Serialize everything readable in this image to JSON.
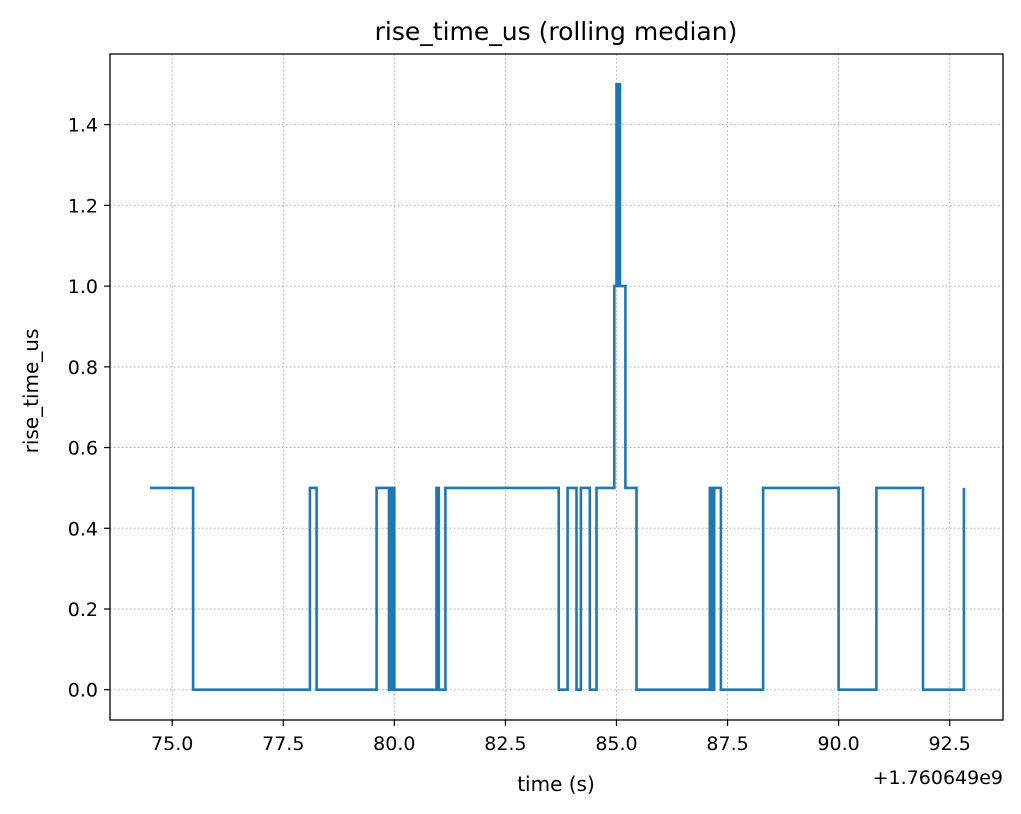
{
  "chart_data": {
    "type": "line",
    "title": "rise_time_us (rolling median)",
    "xlabel": "time (s)",
    "ylabel": "rise_time_us",
    "x_offset_text": "+1.760649e9",
    "xlim": [
      73.6,
      93.7
    ],
    "ylim": [
      -0.075,
      1.575
    ],
    "xticks": [
      75.0,
      77.5,
      80.0,
      82.5,
      85.0,
      87.5,
      90.0,
      92.5
    ],
    "xtick_labels": [
      "75.0",
      "77.5",
      "80.0",
      "82.5",
      "85.0",
      "87.5",
      "90.0",
      "92.5"
    ],
    "yticks": [
      0.0,
      0.2,
      0.4,
      0.6,
      0.8,
      1.0,
      1.2,
      1.4
    ],
    "ytick_labels": [
      "0.0",
      "0.2",
      "0.4",
      "0.6",
      "0.8",
      "1.0",
      "1.2",
      "1.4"
    ],
    "grid": true,
    "series": [
      {
        "color": "#1f77b4",
        "x": [
          74.5,
          75.45,
          75.47,
          78.05,
          78.1,
          78.22,
          78.25,
          79.55,
          79.6,
          79.85,
          79.88,
          79.9,
          79.92,
          79.95,
          80.0,
          80.02,
          80.9,
          80.95,
          81.0,
          81.1,
          81.15,
          83.65,
          83.7,
          83.85,
          83.9,
          84.05,
          84.1,
          84.2,
          84.25,
          84.4,
          84.5,
          84.55,
          84.9,
          84.95,
          85.0,
          85.02,
          85.05,
          85.08,
          85.1,
          85.15,
          85.2,
          85.35,
          85.45,
          87.05,
          87.1,
          87.15,
          87.2,
          87.25,
          87.35,
          88.25,
          88.3,
          89.95,
          90.0,
          90.75,
          90.85,
          91.85,
          91.9,
          92.8,
          92.82
        ],
        "y": [
          0.5,
          0.5,
          0.0,
          0.0,
          0.5,
          0.5,
          0.0,
          0.0,
          0.5,
          0.5,
          0.0,
          0.5,
          0.0,
          0.5,
          0.0,
          0.0,
          0.0,
          0.5,
          0.0,
          0.0,
          0.5,
          0.5,
          0.0,
          0.0,
          0.5,
          0.5,
          0.0,
          0.5,
          0.5,
          0.0,
          0.0,
          0.5,
          0.5,
          1.0,
          1.5,
          1.0,
          1.5,
          1.0,
          1.0,
          1.0,
          0.5,
          0.5,
          0.0,
          0.0,
          0.5,
          0.0,
          0.5,
          0.5,
          0.0,
          0.0,
          0.5,
          0.5,
          0.0,
          0.0,
          0.5,
          0.5,
          0.0,
          0.0,
          0.5
        ]
      }
    ]
  }
}
